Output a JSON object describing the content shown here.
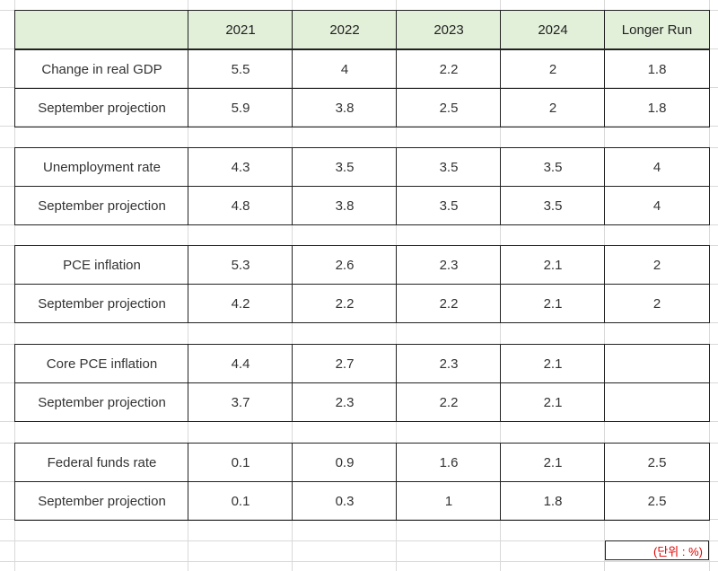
{
  "header": {
    "corner": "",
    "columns": [
      "2021",
      "2022",
      "2023",
      "2024",
      "Longer Run"
    ]
  },
  "groups": [
    {
      "rows": [
        {
          "label": "Change in real GDP",
          "values": [
            "5.5",
            "4",
            "2.2",
            "2",
            "1.8"
          ]
        },
        {
          "label": "September projection",
          "values": [
            "5.9",
            "3.8",
            "2.5",
            "2",
            "1.8"
          ]
        }
      ]
    },
    {
      "rows": [
        {
          "label": "Unemployment rate",
          "values": [
            "4.3",
            "3.5",
            "3.5",
            "3.5",
            "4"
          ]
        },
        {
          "label": "September projection",
          "values": [
            "4.8",
            "3.8",
            "3.5",
            "3.5",
            "4"
          ]
        }
      ]
    },
    {
      "rows": [
        {
          "label": "PCE inflation",
          "values": [
            "5.3",
            "2.6",
            "2.3",
            "2.1",
            "2"
          ]
        },
        {
          "label": "September projection",
          "values": [
            "4.2",
            "2.2",
            "2.2",
            "2.1",
            "2"
          ]
        }
      ]
    },
    {
      "rows": [
        {
          "label": "Core PCE inflation",
          "values": [
            "4.4",
            "2.7",
            "2.3",
            "2.1",
            ""
          ]
        },
        {
          "label": "September projection",
          "values": [
            "3.7",
            "2.3",
            "2.2",
            "2.1",
            ""
          ]
        }
      ]
    },
    {
      "rows": [
        {
          "label": "Federal funds rate",
          "values": [
            "0.1",
            "0.9",
            "1.6",
            "2.1",
            "2.5"
          ]
        },
        {
          "label": "September projection",
          "values": [
            "0.1",
            "0.3",
            "1",
            "1.8",
            "2.5"
          ]
        }
      ]
    }
  ],
  "unit_note": "(단위 : %)",
  "colors": {
    "header_bg": "#e2efd9",
    "border": "#222222",
    "gridline": "#d9d9d9",
    "unit_text": "#e00000"
  }
}
